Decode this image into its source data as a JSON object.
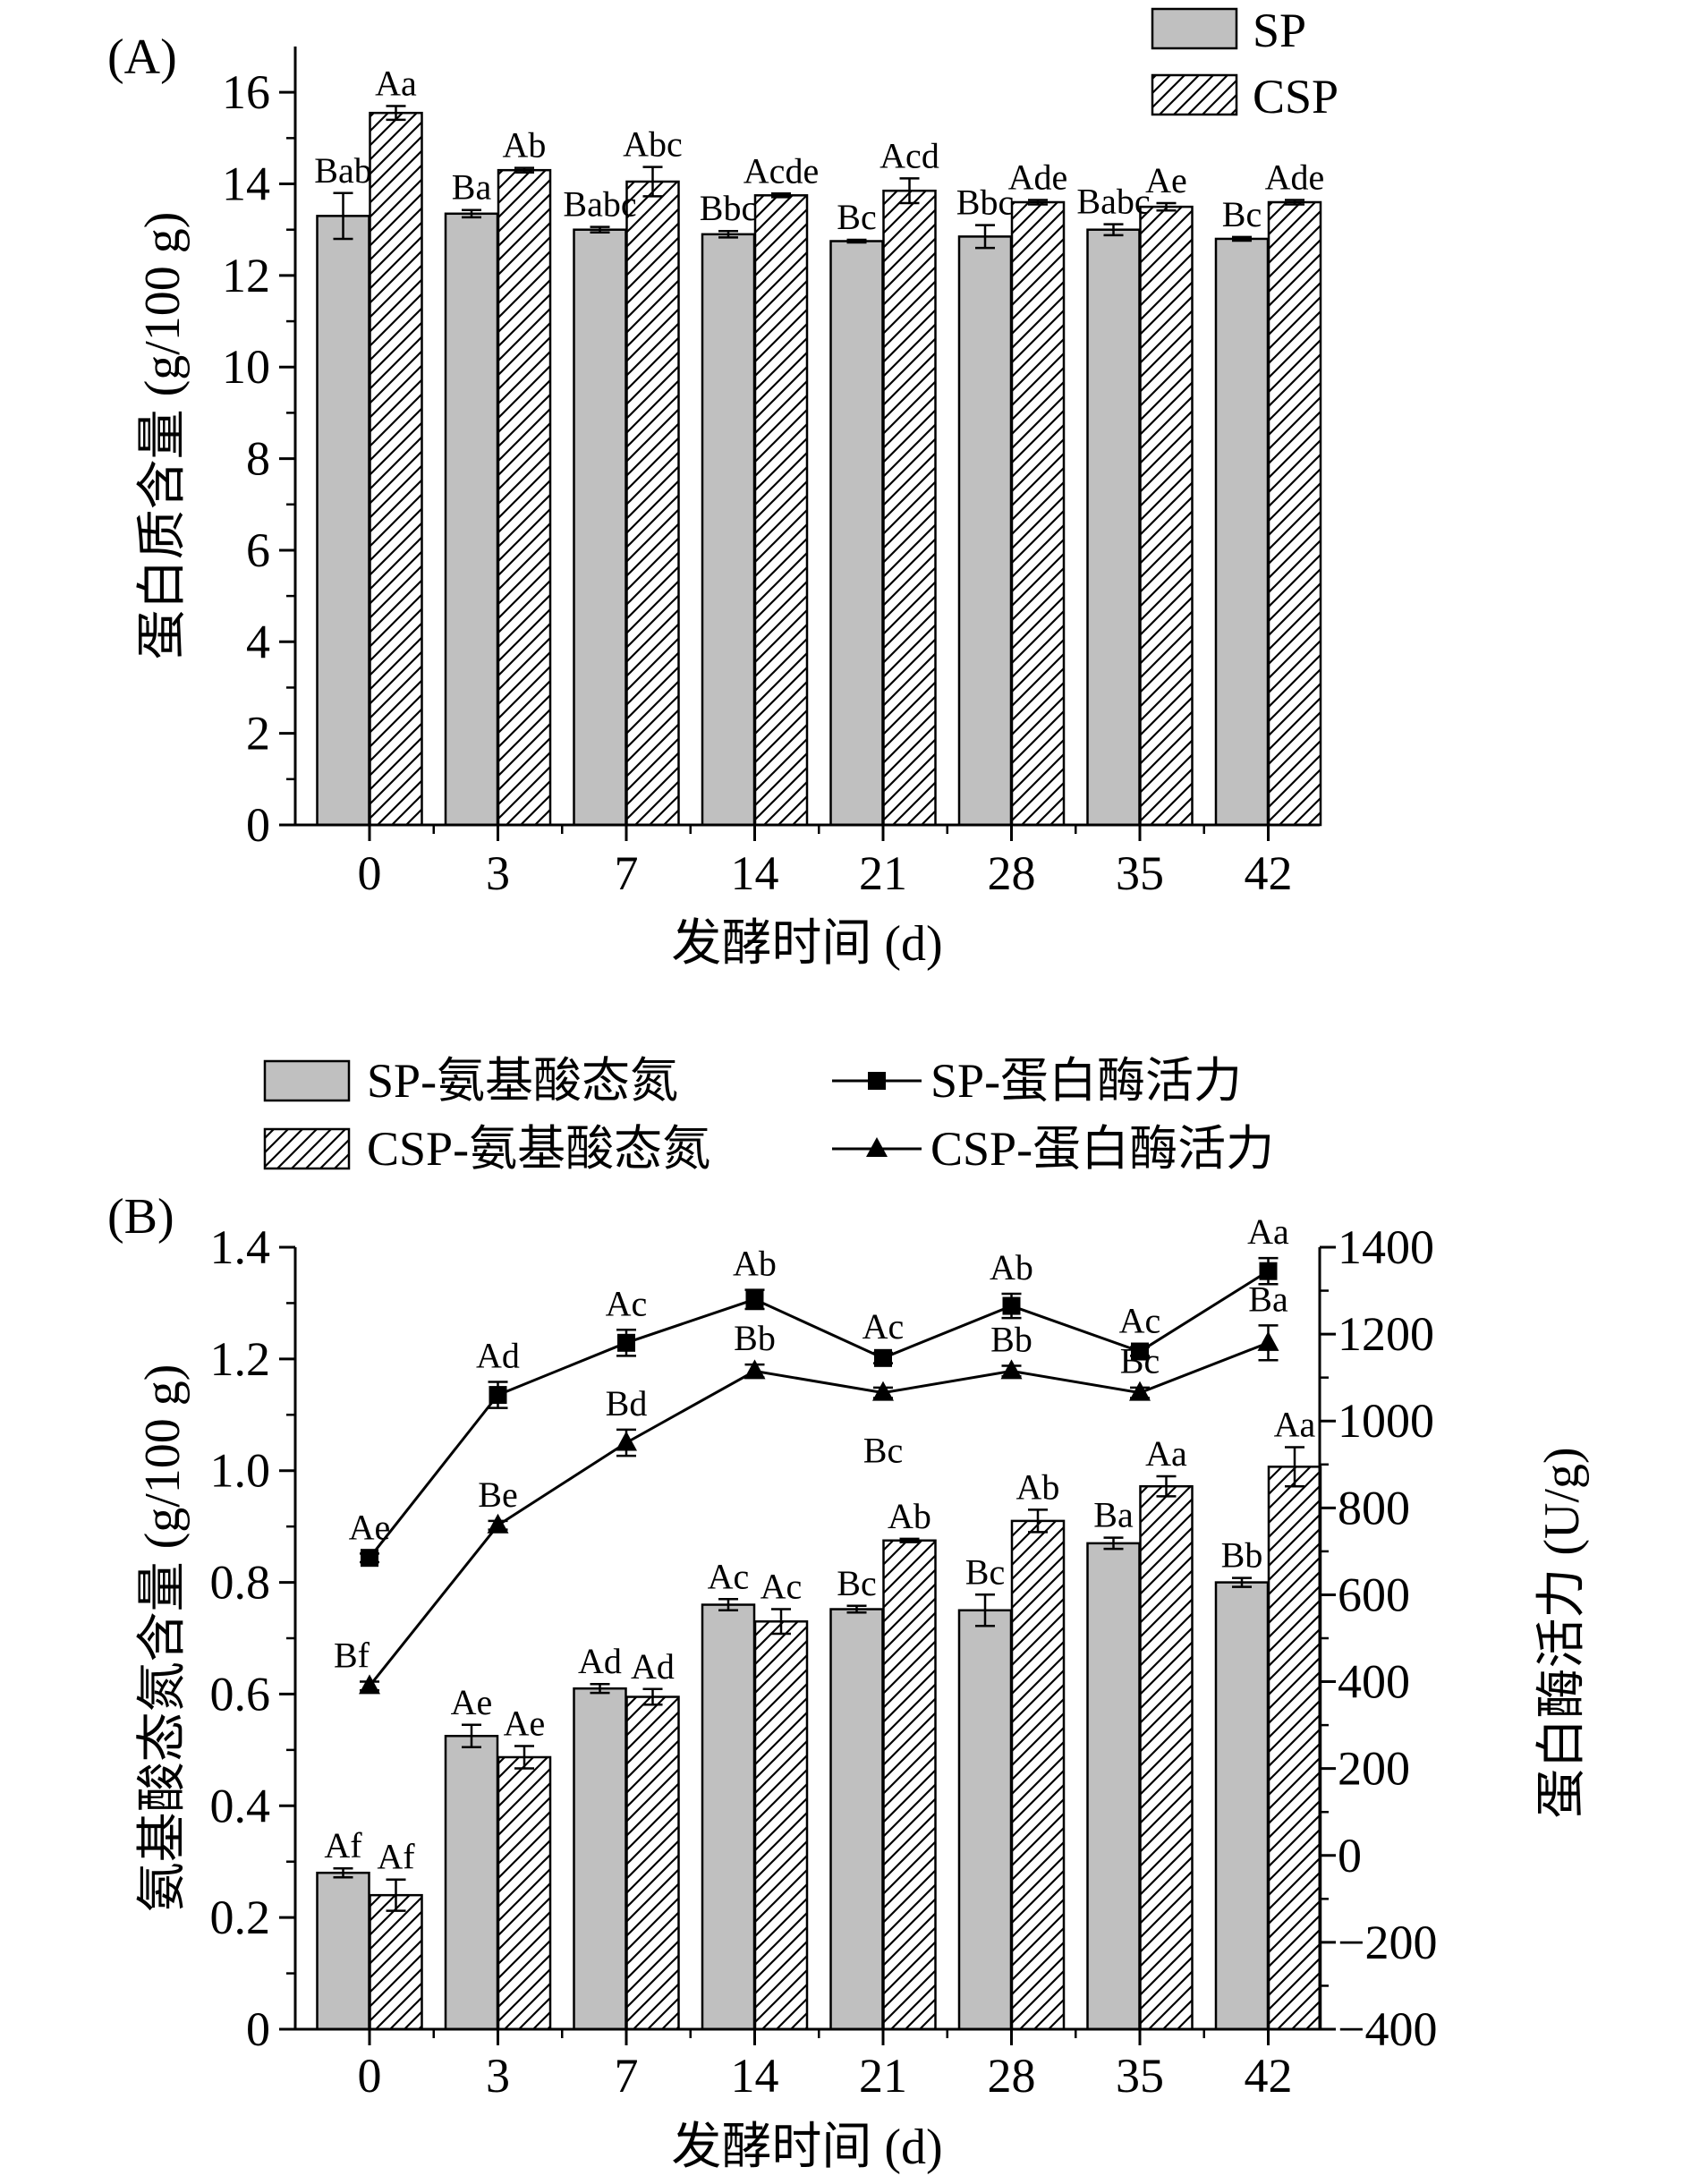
{
  "chart_data": [
    {
      "type": "bar",
      "panel_label": "(A)",
      "categories": [
        "0",
        "3",
        "7",
        "14",
        "21",
        "28",
        "35",
        "42"
      ],
      "xlabel": "发酵时间 (d)",
      "ylabel": "蛋白质含量 (g/100 g)",
      "ylim": [
        0,
        17
      ],
      "yticks": [
        "0",
        "2",
        "4",
        "6",
        "8",
        "10",
        "12",
        "14",
        "16"
      ],
      "legend_position": "top-right",
      "series": [
        {
          "name": "SP",
          "fill": "#c0c0c0",
          "values": [
            13.3,
            13.35,
            13.0,
            12.9,
            12.75,
            12.85,
            13.0,
            12.8
          ],
          "errors": [
            0.5,
            0.08,
            0.06,
            0.07,
            0.03,
            0.25,
            0.12,
            0.04
          ],
          "labels": [
            "Bab",
            "Ba",
            "Babc",
            "Bbc",
            "Bc",
            "Bbc",
            "Babc",
            "Bc"
          ]
        },
        {
          "name": "CSP",
          "fill": "hatch",
          "values": [
            15.55,
            14.3,
            14.05,
            13.75,
            13.85,
            13.6,
            13.5,
            13.6
          ],
          "errors": [
            0.15,
            0.05,
            0.32,
            0.04,
            0.27,
            0.05,
            0.08,
            0.05
          ],
          "labels": [
            "Aa",
            "Ab",
            "Abc",
            "Acde",
            "Acd",
            "Ade",
            "Ae",
            "Ade"
          ]
        }
      ]
    },
    {
      "type": "bar",
      "panel_label": "(B)",
      "categories": [
        "0",
        "3",
        "7",
        "14",
        "21",
        "28",
        "35",
        "42"
      ],
      "xlabel": "发酵时间 (d)",
      "ylabel": "氨基酸态氮含量 (g/100 g)",
      "ylim": [
        0,
        1.4
      ],
      "yticks": [
        "0",
        "0.2",
        "0.4",
        "0.6",
        "0.8",
        "1.0",
        "1.2",
        "1.4"
      ],
      "y2label": "蛋白酶活力 (U/g)",
      "y2lim": [
        -400,
        1400
      ],
      "y2ticks": [
        "−400",
        "−200",
        "0",
        "200",
        "400",
        "600",
        "800",
        "1000",
        "1200",
        "1400"
      ],
      "legend_position": "top",
      "series": [
        {
          "name": "SP-氨基酸态氮",
          "kind": "bar",
          "axis": "left",
          "fill": "#c0c0c0",
          "values": [
            0.28,
            0.525,
            0.61,
            0.76,
            0.752,
            0.75,
            0.87,
            0.8
          ],
          "errors": [
            0.008,
            0.02,
            0.008,
            0.01,
            0.006,
            0.028,
            0.01,
            0.008
          ],
          "labels": [
            "Af",
            "Ae",
            "Ad",
            "Ac",
            "Bc",
            "Bc",
            "Ba",
            "Bb"
          ]
        },
        {
          "name": "CSP-氨基酸态氮",
          "kind": "bar",
          "axis": "left",
          "fill": "hatch",
          "values": [
            0.24,
            0.487,
            0.595,
            0.73,
            0.875,
            0.91,
            0.972,
            1.007
          ],
          "errors": [
            0.028,
            0.02,
            0.014,
            0.022,
            0.003,
            0.02,
            0.018,
            0.035
          ],
          "labels": [
            "Af",
            "Ae",
            "Ad",
            "Ac",
            "Ab",
            "Ab",
            "Aa",
            "Aa"
          ]
        },
        {
          "name": "SP-蛋白酶活力",
          "kind": "line",
          "marker": "square",
          "axis": "right",
          "values": [
            685,
            1060,
            1180,
            1280,
            1145,
            1265,
            1160,
            1345
          ],
          "errors": [
            10,
            30,
            30,
            22,
            12,
            28,
            10,
            30
          ],
          "labels": [
            "Ae",
            "Ad",
            "Ac",
            "Ab",
            "Ac",
            "Ab",
            "Ac",
            "Aa"
          ]
        },
        {
          "name": "CSP-蛋白酶活力",
          "kind": "line",
          "marker": "triangle",
          "axis": "right",
          "values": [
            390,
            760,
            950,
            1115,
            1065,
            1115,
            1065,
            1180
          ],
          "errors": [
            10,
            10,
            30,
            15,
            12,
            12,
            12,
            40
          ],
          "labels": [
            "Bf",
            "Be",
            "Bd",
            "Bb",
            "Bc",
            "Bb",
            "Bc",
            "Ba"
          ]
        }
      ]
    }
  ]
}
